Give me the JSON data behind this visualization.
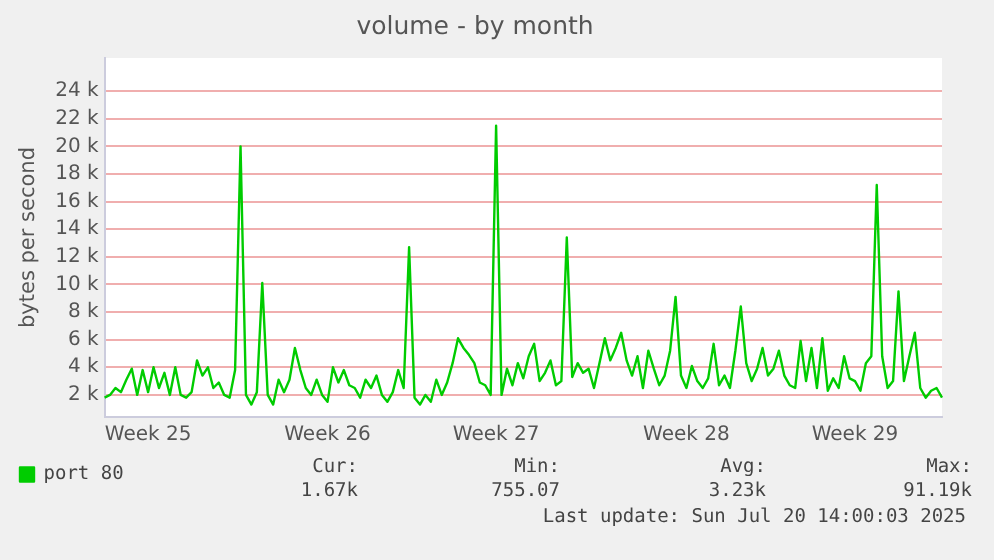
{
  "chart_data": {
    "type": "line",
    "title": "volume - by month",
    "ylabel": "bytes per second",
    "categories": [
      null,
      null,
      null,
      null,
      null,
      null,
      null,
      null,
      "Week 25",
      null,
      null,
      null,
      null,
      null,
      null,
      null,
      null,
      null,
      null,
      null,
      null,
      null,
      null,
      null,
      null,
      null,
      null,
      null,
      null,
      null,
      null,
      null,
      null,
      null,
      null,
      null,
      null,
      null,
      null,
      null,
      null,
      "Week 26",
      null,
      null,
      null,
      null,
      null,
      null,
      null,
      null,
      null,
      null,
      null,
      null,
      null,
      null,
      null,
      null,
      null,
      null,
      null,
      null,
      null,
      null,
      null,
      null,
      null,
      null,
      null,
      null,
      null,
      null,
      "Week 27",
      null,
      null,
      null,
      null,
      null,
      null,
      null,
      null,
      null,
      null,
      null,
      null,
      null,
      null,
      null,
      null,
      null,
      null,
      null,
      null,
      null,
      null,
      null,
      null,
      null,
      null,
      null,
      null,
      null,
      null,
      null,
      null,
      null,
      null,
      "Week 28",
      null,
      null,
      null,
      null,
      null,
      null,
      null,
      null,
      null,
      null,
      null,
      null,
      null,
      null,
      null,
      null,
      null,
      null,
      null,
      null,
      null,
      null,
      null,
      null,
      null,
      null,
      null,
      null,
      null,
      null,
      "Week 29",
      null,
      null,
      null,
      null,
      null,
      null,
      null,
      null,
      null,
      null,
      null,
      null,
      null,
      null,
      null,
      null
    ],
    "series": [
      {
        "name": "port 80",
        "color": "#00cc00",
        "values": [
          1.8,
          2.0,
          2.5,
          2.2,
          3.1,
          3.9,
          2.0,
          3.8,
          2.2,
          4.0,
          2.5,
          3.6,
          2.0,
          4.0,
          2.0,
          1.8,
          2.2,
          4.5,
          3.4,
          4.0,
          2.5,
          2.9,
          2.0,
          1.8,
          3.8,
          20.0,
          2.0,
          1.3,
          2.2,
          10.1,
          2.0,
          1.3,
          3.1,
          2.2,
          3.1,
          5.4,
          3.8,
          2.5,
          2.0,
          3.1,
          2.0,
          1.5,
          4.0,
          2.9,
          3.8,
          2.7,
          2.5,
          1.8,
          3.1,
          2.5,
          3.4,
          2.0,
          1.5,
          2.2,
          3.8,
          2.5,
          12.7,
          1.8,
          1.3,
          2.0,
          1.5,
          3.1,
          2.0,
          2.9,
          4.3,
          6.1,
          5.4,
          4.9,
          4.3,
          2.9,
          2.7,
          2.0,
          21.5,
          2.0,
          3.9,
          2.7,
          4.3,
          3.2,
          4.8,
          5.7,
          3.0,
          3.6,
          4.5,
          2.7,
          3.0,
          13.4,
          3.3,
          4.3,
          3.6,
          3.9,
          2.5,
          4.3,
          6.1,
          4.5,
          5.4,
          6.5,
          4.5,
          3.4,
          4.8,
          2.5,
          5.2,
          3.9,
          2.7,
          3.4,
          5.2,
          9.1,
          3.4,
          2.5,
          4.1,
          3.0,
          2.5,
          3.2,
          5.7,
          2.7,
          3.4,
          2.5,
          5.2,
          8.4,
          4.3,
          3.0,
          3.9,
          5.4,
          3.4,
          3.9,
          5.2,
          3.4,
          2.7,
          2.5,
          5.9,
          3.0,
          5.4,
          2.5,
          6.1,
          2.3,
          3.2,
          2.5,
          4.8,
          3.2,
          3.0,
          2.3,
          4.3,
          4.8,
          17.2,
          4.8,
          2.5,
          3.0,
          9.5,
          3.0,
          4.8,
          6.5,
          2.5,
          1.8,
          2.3,
          2.5,
          1.8
        ]
      }
    ],
    "ylim": [
      0.4,
      26.4
    ],
    "yticks": [
      {
        "value": 2,
        "label": "2 k"
      },
      {
        "value": 4,
        "label": "4 k"
      },
      {
        "value": 6,
        "label": "6 k"
      },
      {
        "value": 8,
        "label": "8 k"
      },
      {
        "value": 10,
        "label": "10 k"
      },
      {
        "value": 12,
        "label": "12 k"
      },
      {
        "value": 14,
        "label": "14 k"
      },
      {
        "value": 16,
        "label": "16 k"
      },
      {
        "value": 18,
        "label": "18 k"
      },
      {
        "value": 20,
        "label": "20 k"
      },
      {
        "value": 22,
        "label": "22 k"
      },
      {
        "value": 24,
        "label": "24 k"
      }
    ],
    "grid": "y",
    "legend": "bottom left",
    "marker": "none",
    "line_style": "solid",
    "annotations": [
      "Cur:",
      "1.67k",
      "Min:",
      "755.07",
      "Avg:",
      "3.23k",
      "Max:",
      "91.19k",
      "Last update: Sun Jul 20 14:00:03 2025"
    ]
  }
}
